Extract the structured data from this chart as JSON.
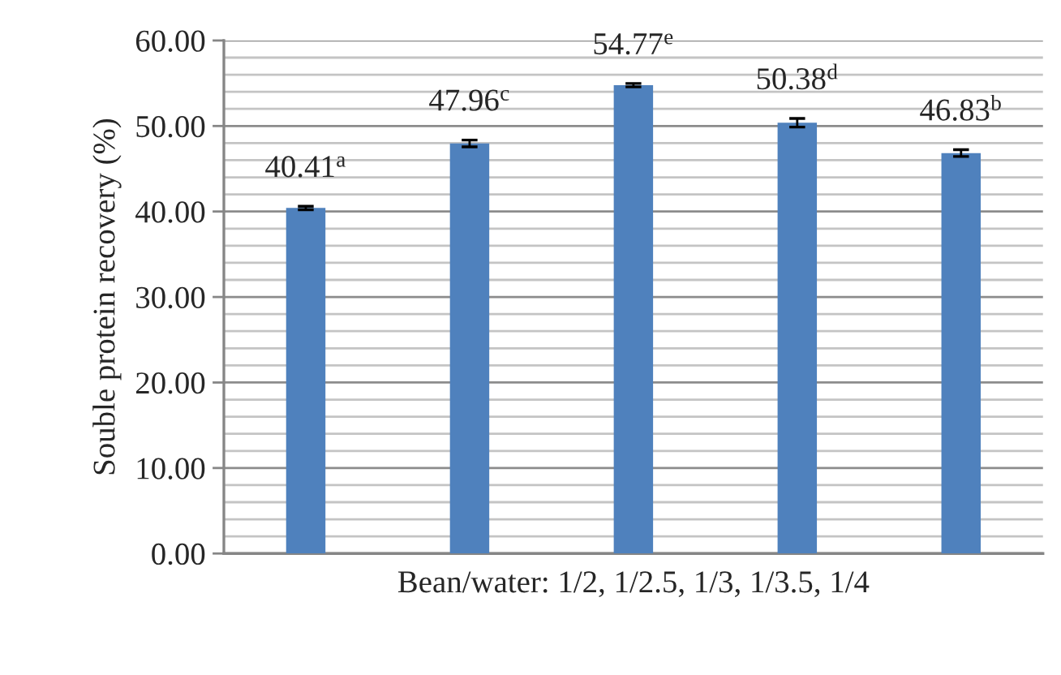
{
  "chart_data": {
    "type": "bar",
    "ylabel": "Souble protein recovery (%)",
    "xlabel": "Bean/water: 1/2, 1/2.5, 1/3, 1/3.5, 1/4",
    "categories": [
      null,
      null,
      null,
      null,
      null
    ],
    "values": [
      40.41,
      47.96,
      54.77,
      50.38,
      46.83
    ],
    "color": "#4f81bd",
    "errors": [
      0.2,
      0.4,
      0.2,
      0.5,
      0.4
    ],
    "value_labels": [
      "40.41$^{a}$",
      "47.96$^{c}$",
      "54.77$^{e}$",
      "50.38$^{d}$",
      "46.83$^{b}$"
    ],
    "ylim": [
      0,
      60
    ],
    "yticks": [
      {
        "value": 0,
        "label": "0.00"
      },
      {
        "value": 2,
        "label": null
      },
      {
        "value": 4,
        "label": null
      },
      {
        "value": 6,
        "label": null
      },
      {
        "value": 8,
        "label": null
      },
      {
        "value": 10,
        "label": "10.00"
      },
      {
        "value": 12,
        "label": null
      },
      {
        "value": 14,
        "label": null
      },
      {
        "value": 16,
        "label": null
      },
      {
        "value": 18,
        "label": null
      },
      {
        "value": 20,
        "label": "20.00"
      },
      {
        "value": 22,
        "label": null
      },
      {
        "value": 24,
        "label": null
      },
      {
        "value": 26,
        "label": null
      },
      {
        "value": 28,
        "label": null
      },
      {
        "value": 30,
        "label": "30.00"
      },
      {
        "value": 32,
        "label": null
      },
      {
        "value": 34,
        "label": null
      },
      {
        "value": 36,
        "label": null
      },
      {
        "value": 38,
        "label": null
      },
      {
        "value": 40,
        "label": "40.00"
      },
      {
        "value": 42,
        "label": null
      },
      {
        "value": 44,
        "label": null
      },
      {
        "value": 46,
        "label": null
      },
      {
        "value": 48,
        "label": null
      },
      {
        "value": 50,
        "label": "50.00"
      },
      {
        "value": 52,
        "label": null
      },
      {
        "value": 54,
        "label": null
      },
      {
        "value": 56,
        "label": null
      },
      {
        "value": 58,
        "label": null
      },
      {
        "value": 60,
        "label": "60.00"
      }
    ],
    "grid": true
  }
}
